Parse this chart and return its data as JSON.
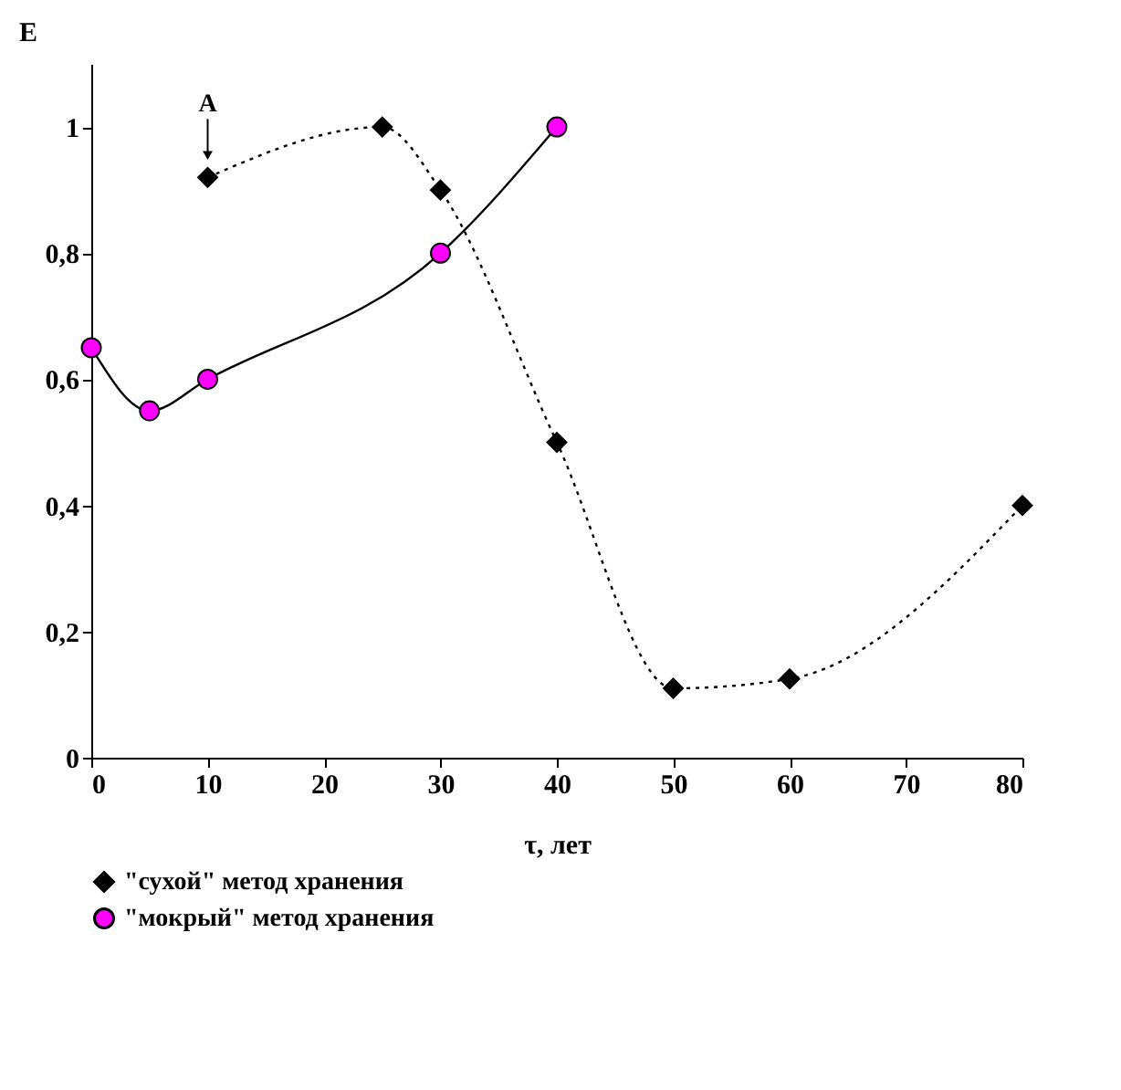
{
  "chart_data": {
    "type": "line",
    "xlabel": "τ, лет",
    "ylabel": "E",
    "xlim": [
      0,
      80
    ],
    "xticks": [
      0,
      10,
      20,
      30,
      40,
      50,
      60,
      70,
      80
    ],
    "ylim": [
      0,
      1.1
    ],
    "yticks": [
      0,
      {
        "value": 0.2,
        "label": "0,2"
      },
      {
        "value": 0.4,
        "label": "0,4"
      },
      {
        "value": 0.6,
        "label": "0,6"
      },
      {
        "value": 0.8,
        "label": "0,8"
      },
      1
    ],
    "grid": false,
    "legend": "bottom",
    "annotations": [
      {
        "text": "A",
        "x": 10,
        "y": 0.92
      }
    ],
    "series": [
      {
        "name": "\"сухой\" метод хранения",
        "color": "#000000",
        "marker": "diamond",
        "line_style": "dotted",
        "x": [
          10,
          25,
          30,
          40,
          50,
          60,
          80
        ],
        "values": [
          0.92,
          1.0,
          0.9,
          0.5,
          0.11,
          0.125,
          0.4
        ]
      },
      {
        "name": "\"мокрый\" метод хранения",
        "color": "#ff00ff",
        "marker": "circle",
        "line_style": "solid",
        "x": [
          0,
          5,
          10,
          30,
          40
        ],
        "values": [
          0.65,
          0.55,
          0.6,
          0.8,
          1.0
        ]
      }
    ]
  }
}
